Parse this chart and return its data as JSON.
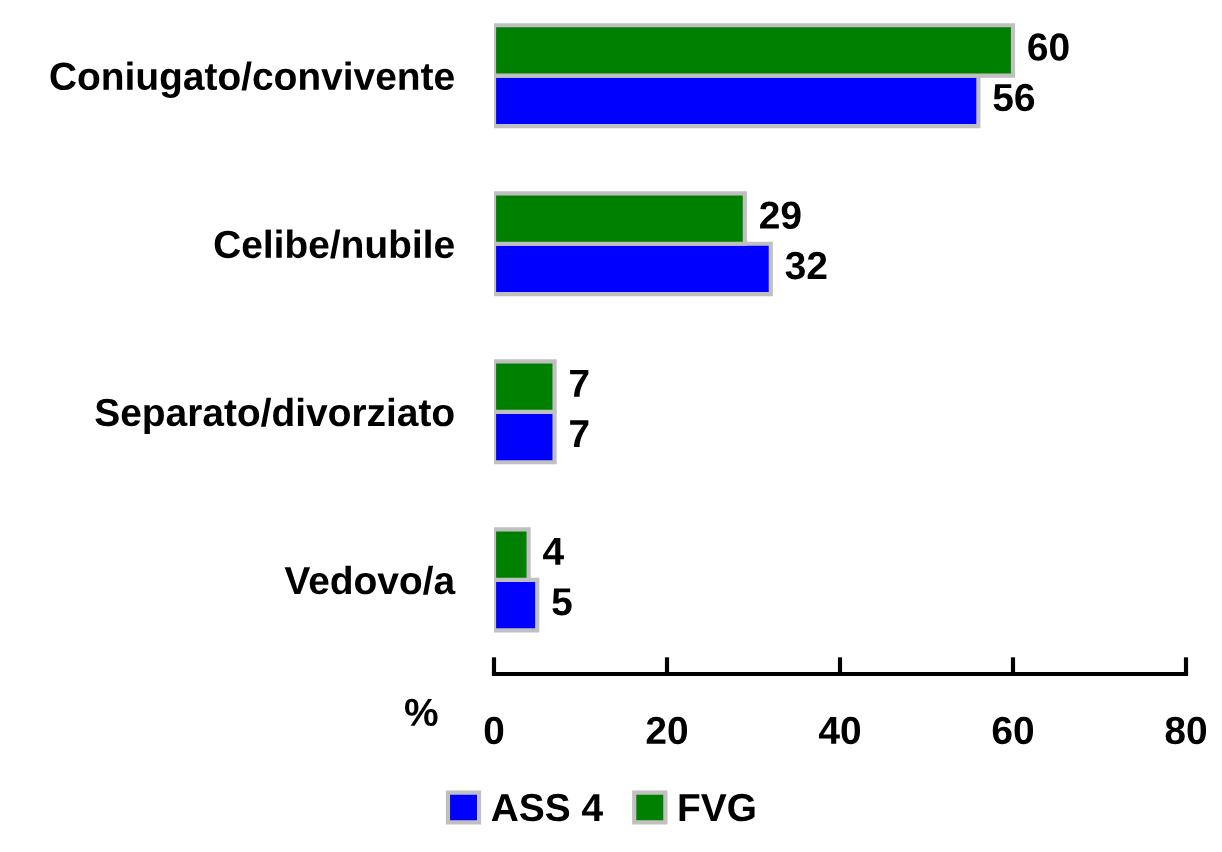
{
  "chart_data": {
    "type": "bar",
    "orientation": "horizontal",
    "categories": [
      "Coniugato/convivente",
      "Celibe/nubile",
      "Separato/divorziato",
      "Vedovo/a"
    ],
    "series": [
      {
        "name": "ASS 4",
        "color": "#0000ff",
        "values": [
          56,
          32,
          7,
          5
        ]
      },
      {
        "name": "FVG",
        "color": "#008000",
        "values": [
          60,
          29,
          7,
          4
        ]
      }
    ],
    "xlabel": "%",
    "xlim": [
      0,
      80
    ],
    "xticks": [
      0,
      20,
      40,
      60,
      80
    ],
    "data_labels": true,
    "legend": "bottom",
    "grid": false
  }
}
